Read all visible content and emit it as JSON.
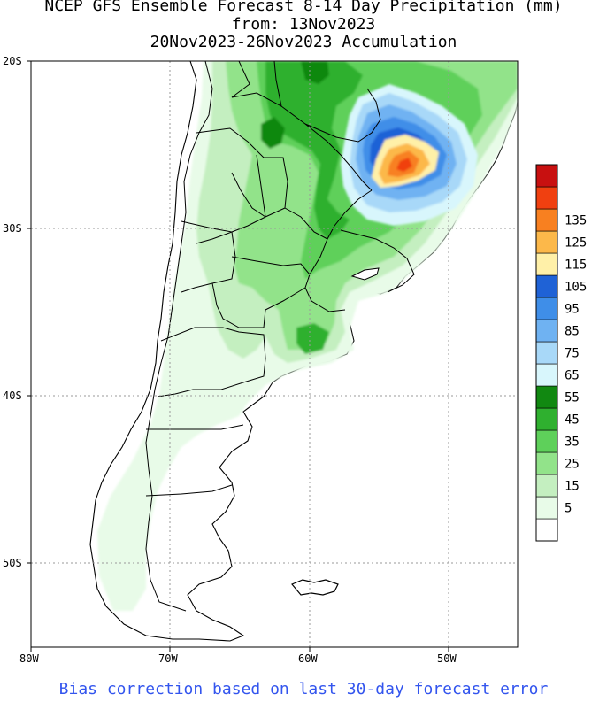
{
  "title": {
    "line1": "NCEP GFS Ensemble Forecast 8-14 Day Precipitation (mm)",
    "line2": "from: 13Nov2023",
    "line3": "20Nov2023-26Nov2023 Accumulation"
  },
  "footer": "Bias correction based on last 30-day forecast error",
  "map": {
    "lon_range": [
      -80,
      -45
    ],
    "lat_range": [
      -55,
      -20
    ],
    "lat_ticks": [
      {
        "value": -20,
        "label": "20S"
      },
      {
        "value": -30,
        "label": "30S"
      },
      {
        "value": -40,
        "label": "40S"
      },
      {
        "value": -50,
        "label": "50S"
      }
    ],
    "lon_ticks": [
      {
        "value": -80,
        "label": "80W"
      },
      {
        "value": -70,
        "label": "70W"
      },
      {
        "value": -60,
        "label": "60W"
      },
      {
        "value": -50,
        "label": "50W"
      }
    ],
    "grid": "dotted"
  },
  "legend": {
    "levels": [
      {
        "label": "",
        "color": "#ffffff"
      },
      {
        "label": "5",
        "color": "#e8fbe8"
      },
      {
        "label": "15",
        "color": "#c4efc0"
      },
      {
        "label": "25",
        "color": "#92e38a"
      },
      {
        "label": "35",
        "color": "#5ed05a"
      },
      {
        "label": "45",
        "color": "#2fb02f"
      },
      {
        "label": "55",
        "color": "#118811"
      },
      {
        "label": "65",
        "color": "#d8f6fc"
      },
      {
        "label": "75",
        "color": "#a8d8f8"
      },
      {
        "label": "85",
        "color": "#6fb2f2"
      },
      {
        "label": "95",
        "color": "#3f8ee8"
      },
      {
        "label": "105",
        "color": "#1f62d6"
      },
      {
        "label": "115",
        "color": "#fff0a8"
      },
      {
        "label": "125",
        "color": "#fcb84a"
      },
      {
        "label": "135",
        "color": "#f88020"
      },
      {
        "label": "",
        "color": "#f04010"
      },
      {
        "label": "",
        "color": "#c81010"
      }
    ]
  },
  "colors": {
    "ocean": "#ffffff",
    "land": "#ffffff",
    "border": "#000000",
    "gridline": "#9a9a9a",
    "footer_text": "#3355ee"
  }
}
